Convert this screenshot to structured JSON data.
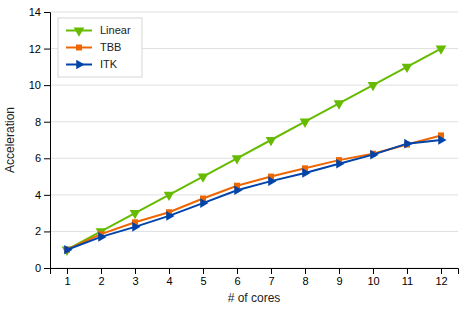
{
  "chart_data": {
    "type": "line",
    "x": [
      1,
      2,
      3,
      4,
      5,
      6,
      7,
      8,
      9,
      10,
      11,
      12
    ],
    "series": [
      {
        "name": "Linear",
        "color": "#66bb00",
        "marker": "triangle-down",
        "values": [
          1,
          2,
          3,
          4,
          5,
          6,
          7,
          8,
          9,
          10,
          11,
          12
        ]
      },
      {
        "name": "TBB",
        "color": "#ee6600",
        "marker": "square",
        "values": [
          1.0,
          1.85,
          2.5,
          3.05,
          3.8,
          4.5,
          5.0,
          5.45,
          5.9,
          6.25,
          6.75,
          7.25
        ]
      },
      {
        "name": "ITK",
        "color": "#0044aa",
        "marker": "triangle-right",
        "values": [
          1.0,
          1.7,
          2.25,
          2.85,
          3.55,
          4.25,
          4.75,
          5.2,
          5.7,
          6.2,
          6.8,
          7.0
        ]
      }
    ],
    "xlabel": "# of cores",
    "ylabel": "Acceleration",
    "xlim": [
      0.5,
      12.5
    ],
    "ylim": [
      0,
      14
    ],
    "xticks": [
      1,
      2,
      3,
      4,
      5,
      6,
      7,
      8,
      9,
      10,
      11,
      12
    ],
    "yticks": [
      0,
      2,
      4,
      6,
      8,
      10,
      12,
      14
    ],
    "grid": "y",
    "legend": "upper left"
  }
}
